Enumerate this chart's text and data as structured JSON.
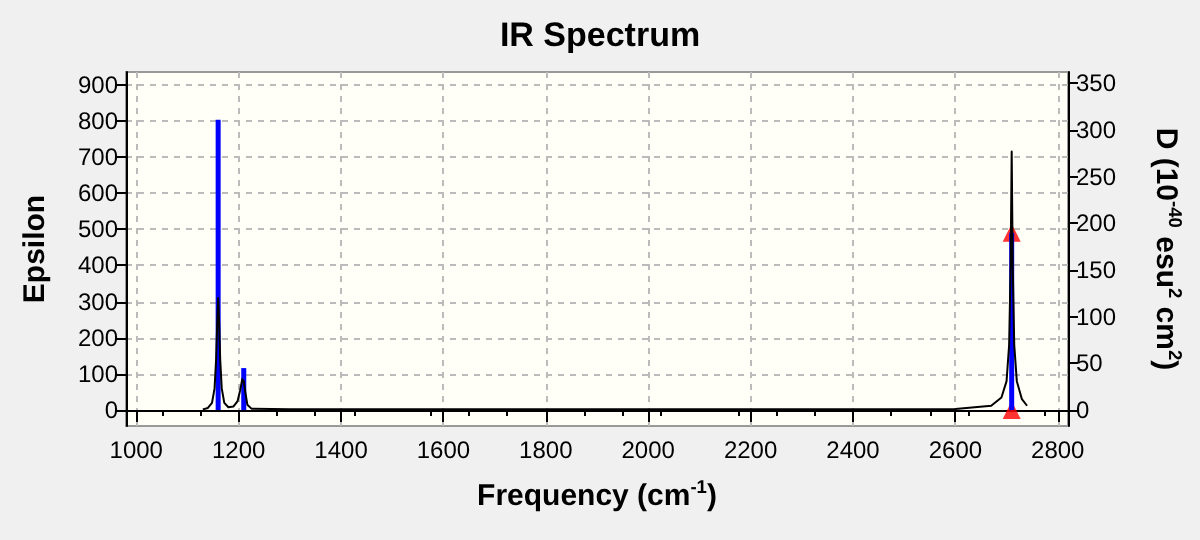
{
  "chart_data": {
    "type": "line",
    "title": "IR Spectrum",
    "xlabel": "Frequency (cm$^{-1}$)",
    "ylabel": "Epsilon",
    "y2label": "D (10$^{-40}$ esu$^{2}$ cm$^{2}$)",
    "xlim": [
      980,
      2820
    ],
    "xticks": [
      1000,
      1200,
      1400,
      1600,
      1800,
      2000,
      2200,
      2400,
      2600,
      2800
    ],
    "ylim": [
      -44,
      935
    ],
    "yticks": [
      0,
      100,
      200,
      300,
      400,
      500,
      600,
      700,
      800,
      900
    ],
    "y2lim": [
      -17,
      362
    ],
    "y2ticks": [
      0,
      50,
      100,
      150,
      200,
      250,
      300,
      350
    ],
    "grid": true,
    "series": [
      {
        "color": "#000000",
        "marker": "none",
        "x": [
          1130,
          1140,
          1148,
          1153,
          1156,
          1158,
          1160,
          1162,
          1164,
          1167,
          1172,
          1180,
          1190,
          1198,
          1203,
          1207,
          1210,
          1213,
          1217,
          1225,
          1300,
          2000,
          2600,
          2670,
          2690,
          2700,
          2705,
          2708,
          2710,
          2712,
          2715,
          2720,
          2730,
          2740
        ],
        "values": [
          2,
          6,
          20,
          60,
          140,
          230,
          310,
          240,
          140,
          60,
          20,
          8,
          10,
          25,
          55,
          85,
          80,
          50,
          15,
          4,
          2,
          2,
          3,
          12,
          35,
          80,
          180,
          400,
          715,
          400,
          180,
          80,
          30,
          12
        ]
      },
      {
        "type": "bar",
        "axis": "y2",
        "color": "#0000ff",
        "x": [
          1160,
          1210,
          2710
        ],
        "values": [
          311,
          45,
          190
        ]
      },
      {
        "type": "scatter",
        "axis": "y2",
        "color": "#ff0000",
        "marker": "triangle",
        "x": [
          2710,
          2710
        ],
        "values": [
          190,
          0
        ]
      }
    ]
  }
}
